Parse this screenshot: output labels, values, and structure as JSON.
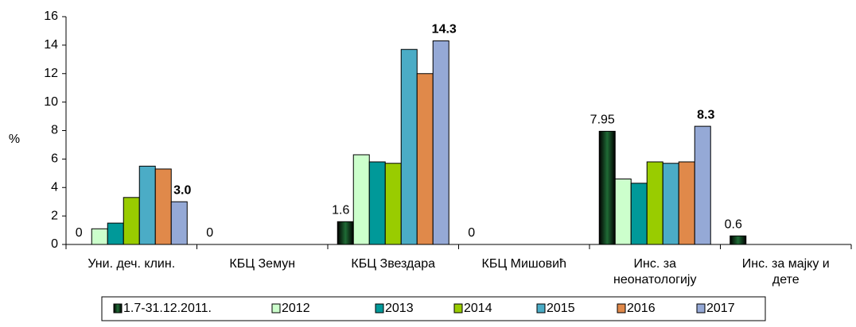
{
  "chart_data": {
    "type": "bar",
    "y_label": "%",
    "categories": [
      "Уни. деч. клин.",
      "КБЦ Земун",
      "КБЦ Звездара",
      "КБЦ Мишовић",
      "Инс. за неонатологију",
      "Инс. за мајку и дете"
    ],
    "series": [
      {
        "name": "1.7-31.12.2011.",
        "color": "#0d3b1e",
        "values": [
          0,
          0,
          1.6,
          0,
          7.95,
          0.6
        ],
        "value_labels": [
          "0",
          "0",
          "1.6",
          "0",
          "7.95",
          "0.6"
        ]
      },
      {
        "name": "2012",
        "color": "#ccffcc",
        "values": [
          1.1,
          null,
          6.3,
          null,
          4.6,
          null
        ]
      },
      {
        "name": "2013",
        "color": "#009999",
        "values": [
          1.5,
          null,
          5.8,
          null,
          4.3,
          null
        ]
      },
      {
        "name": "2014",
        "color": "#99cc00",
        "values": [
          3.3,
          null,
          5.7,
          null,
          5.8,
          null
        ]
      },
      {
        "name": "2015",
        "color": "#4bacc6",
        "values": [
          5.5,
          null,
          13.7,
          null,
          5.7,
          null
        ]
      },
      {
        "name": "2016",
        "color": "#e0894a",
        "values": [
          5.3,
          null,
          12.0,
          null,
          5.8,
          null
        ]
      },
      {
        "name": "2017",
        "color": "#95a9d6",
        "values": [
          3.0,
          null,
          14.3,
          null,
          8.3,
          null
        ],
        "value_labels": [
          "3.0",
          null,
          "14.3",
          null,
          "8.3",
          null
        ]
      }
    ],
    "ylim": [
      0,
      16
    ],
    "yticks": [
      0,
      2,
      4,
      6,
      8,
      10,
      12,
      14,
      16
    ],
    "grid": false
  }
}
